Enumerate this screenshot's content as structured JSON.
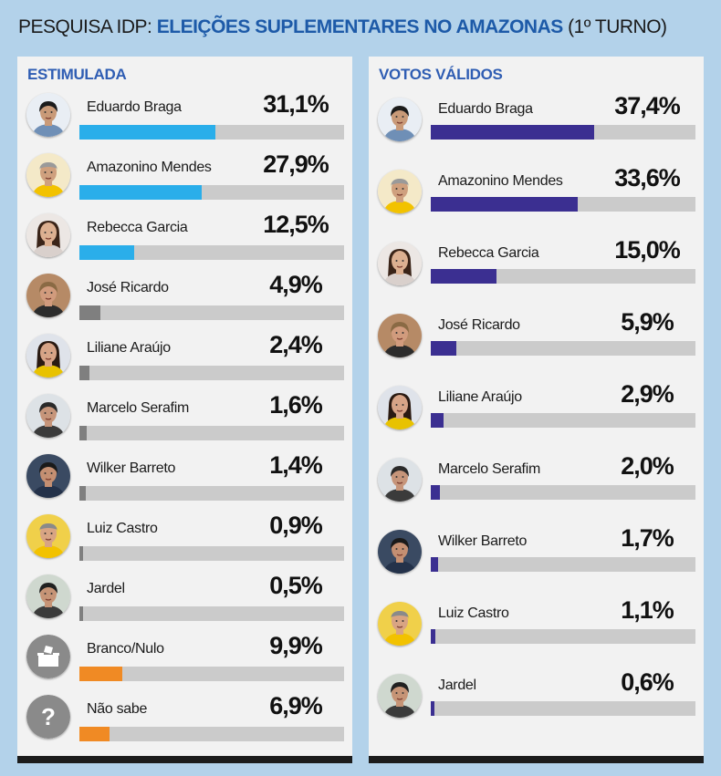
{
  "header": {
    "prefix": "PESQUISA IDP: ",
    "highlight": "ELEIÇÕES SUPLEMENTARES NO AMAZONAS",
    "suffix": " (1º TURNO)"
  },
  "colors": {
    "stimulated_bar": "#2aaeea",
    "valid_bar": "#3b2f91",
    "minor_bar": "#7f7f7f",
    "blank_bar": "#f08a24"
  },
  "chart_data": [
    {
      "type": "bar",
      "title": "ESTIMULADA",
      "xlim": [
        0,
        100
      ],
      "categories": [
        "Eduardo Braga",
        "Amazonino Mendes",
        "Rebecca Garcia",
        "José Ricardo",
        "Liliane Araújo",
        "Marcelo Serafim",
        "Wilker Barreto",
        "Luiz Castro",
        "Jardel",
        "Branco/Nulo",
        "Não sabe"
      ],
      "values": [
        31.1,
        27.9,
        12.5,
        4.9,
        2.4,
        1.6,
        1.4,
        0.9,
        0.5,
        9.9,
        6.9
      ],
      "labels": [
        "31,1%",
        "27,9%",
        "12,5%",
        "4,9%",
        "2,4%",
        "1,6%",
        "1,4%",
        "0,9%",
        "0,5%",
        "9,9%",
        "6,9%"
      ],
      "bar_colors": [
        "#2aaeea",
        "#2aaeea",
        "#2aaeea",
        "#7f7f7f",
        "#7f7f7f",
        "#7f7f7f",
        "#7f7f7f",
        "#7f7f7f",
        "#7f7f7f",
        "#f08a24",
        "#f08a24"
      ],
      "icons": [
        "avatar-braga",
        "avatar-amazonino",
        "avatar-rebecca",
        "avatar-ricardo",
        "avatar-liliane",
        "avatar-serafim",
        "avatar-wilker",
        "avatar-castro",
        "avatar-jardel",
        "ballot-box-icon",
        "question-mark-icon"
      ]
    },
    {
      "type": "bar",
      "title": "VOTOS VÁLIDOS",
      "xlim": [
        0,
        100
      ],
      "categories": [
        "Eduardo Braga",
        "Amazonino Mendes",
        "Rebecca Garcia",
        "José Ricardo",
        "Liliane Araújo",
        "Marcelo Serafim",
        "Wilker Barreto",
        "Luiz Castro",
        "Jardel"
      ],
      "values": [
        37.4,
        33.6,
        15.0,
        5.9,
        2.9,
        2.0,
        1.7,
        1.1,
        0.6
      ],
      "labels": [
        "37,4%",
        "33,6%",
        "15,0%",
        "5,9%",
        "2,9%",
        "2,0%",
        "1,7%",
        "1,1%",
        "0,6%"
      ],
      "bar_colors": [
        "#3b2f91",
        "#3b2f91",
        "#3b2f91",
        "#3b2f91",
        "#3b2f91",
        "#3b2f91",
        "#3b2f91",
        "#3b2f91",
        "#3b2f91"
      ],
      "icons": [
        "avatar-braga",
        "avatar-amazonino",
        "avatar-rebecca",
        "avatar-ricardo",
        "avatar-liliane",
        "avatar-serafim",
        "avatar-wilker",
        "avatar-castro",
        "avatar-jardel"
      ]
    }
  ]
}
